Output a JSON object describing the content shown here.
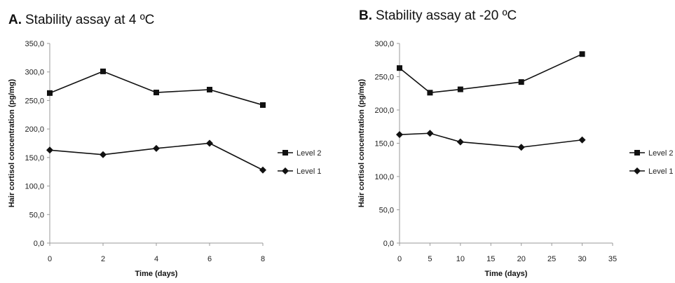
{
  "chart_data": [
    {
      "type": "line",
      "panel_letter": "A.",
      "title": "Stability assay at 4 ºC",
      "xlabel": "Time (days)",
      "ylabel": "Hair cortisol concentration (pg/mg)",
      "xlim": [
        0,
        8
      ],
      "xticks": [
        0,
        2,
        4,
        6,
        8
      ],
      "xtick_labels": [
        "0",
        "2",
        "4",
        "6",
        "8"
      ],
      "ylim": [
        0,
        350
      ],
      "yticks": [
        0,
        50,
        100,
        150,
        200,
        250,
        300,
        350
      ],
      "ytick_labels": [
        "0,0",
        "50,0",
        "100,0",
        "150,0",
        "200,0",
        "250,0",
        "300,0",
        "350,0"
      ],
      "grid": false,
      "legend_position": "right",
      "series": [
        {
          "name": "Level 2",
          "marker": "square",
          "x": [
            0,
            2,
            4,
            6,
            8
          ],
          "values": [
            263,
            301,
            264,
            269,
            242
          ]
        },
        {
          "name": "Level 1",
          "marker": "diamond",
          "x": [
            0,
            2,
            4,
            6,
            8
          ],
          "values": [
            163,
            155,
            166,
            175,
            128
          ]
        }
      ]
    },
    {
      "type": "line",
      "panel_letter": "B.",
      "title": "Stability assay  at -20 ºC",
      "xlabel": "Time (days)",
      "ylabel": "Hair cortisol concentration (pg/mg)",
      "xlim": [
        0,
        35
      ],
      "xticks": [
        0,
        5,
        10,
        15,
        20,
        25,
        30,
        35
      ],
      "xtick_labels": [
        "0",
        "5",
        "10",
        "15",
        "20",
        "25",
        "30",
        "35"
      ],
      "ylim": [
        0,
        300
      ],
      "yticks": [
        0,
        50,
        100,
        150,
        200,
        250,
        300
      ],
      "ytick_labels": [
        "0,0",
        "50,0",
        "100,0",
        "150,0",
        "200,0",
        "250,0",
        "300,0"
      ],
      "grid": false,
      "legend_position": "right",
      "series": [
        {
          "name": "Level 2",
          "marker": "square",
          "x": [
            0,
            5,
            10,
            20,
            30
          ],
          "values": [
            263,
            226,
            231,
            242,
            284
          ]
        },
        {
          "name": "Level 1",
          "marker": "diamond",
          "x": [
            0,
            5,
            10,
            20,
            30
          ],
          "values": [
            163,
            165,
            152,
            144,
            155
          ]
        }
      ]
    }
  ]
}
